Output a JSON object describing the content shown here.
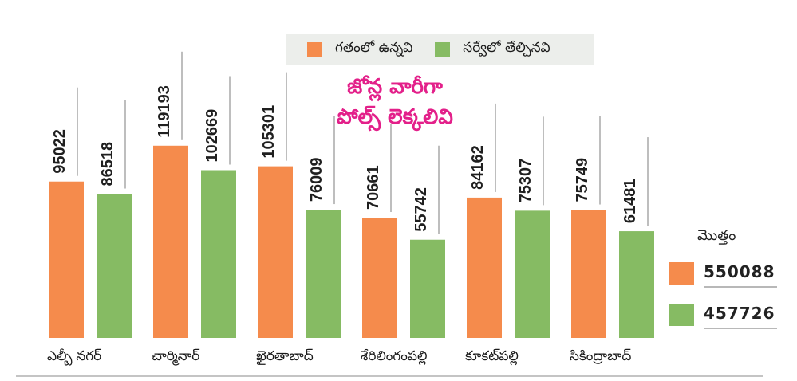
{
  "chart_data": {
    "type": "bar",
    "title": "జోన్ల వారీగా పోల్స్ లెక్కలివి",
    "title_lines": [
      "జోన్ల వారీగా",
      "పోల్స్ లెక్కలివి"
    ],
    "xlabel": "",
    "ylabel": "",
    "categories": [
      "ఎల్బీ నగర్",
      "చార్మినార్",
      "ఖైరతాబాద్",
      "శేరిలింగంపల్లి",
      "కూకట్‌పల్లి",
      "సికింద్రాబాద్"
    ],
    "series": [
      {
        "name": "గతంలో ఉన్నవి",
        "color": "#f58b4c",
        "values": [
          95022,
          119193,
          105301,
          70661,
          84162,
          75749
        ]
      },
      {
        "name": "సర్వేలో తేల్చినవి",
        "color": "#86bb63",
        "values": [
          86518,
          102669,
          76009,
          55742,
          75307,
          61481
        ]
      }
    ],
    "legend_position": "top-center",
    "grid": false,
    "totals": {
      "title": "మొత్తం",
      "values": [
        550088,
        457726
      ]
    }
  },
  "colors": {
    "headline": "#e3208a",
    "legend_bg": "#eceeeb"
  }
}
